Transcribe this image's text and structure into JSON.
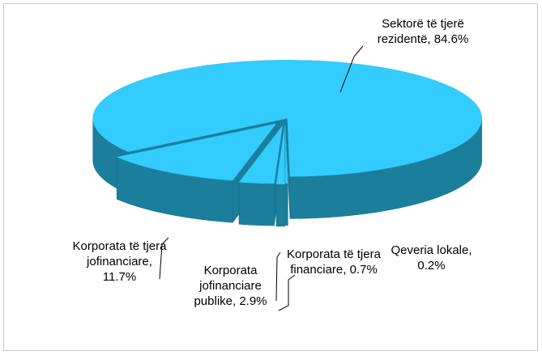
{
  "chart_data": {
    "type": "pie",
    "categories": [
      "Sektorë të tjerë rezidentë,",
      "Qeveria lokale,",
      "Korporata të tjera financiare,",
      "Korporata jofinanciare publike,",
      "Korporata të tjera jofinanciare,"
    ],
    "values": [
      84.6,
      0.2,
      0.7,
      2.9,
      11.7
    ],
    "value_labels": [
      "84.6%",
      "0.2%",
      "0.7%",
      "2.9%",
      "11.7%"
    ],
    "color": "#33ccff",
    "side_color": "#1b7f9c"
  }
}
